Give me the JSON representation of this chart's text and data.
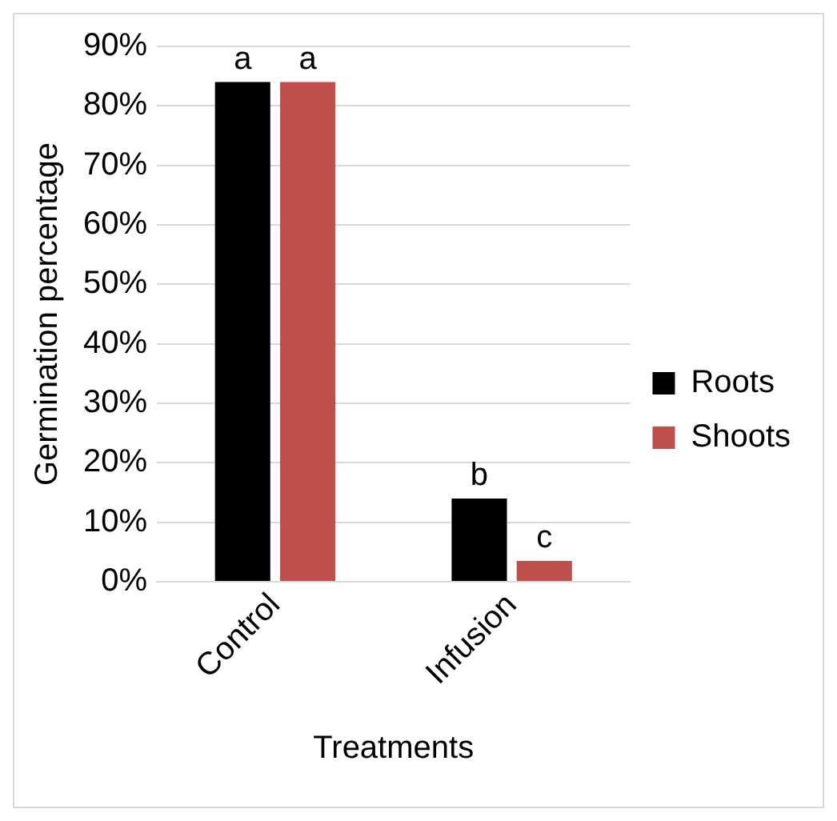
{
  "chart_data": {
    "type": "bar",
    "xlabel": "Treatments",
    "ylabel": "Germination percentage",
    "categories": [
      "Control",
      "Infusion"
    ],
    "series": [
      {
        "name": "Roots",
        "color": "#000000",
        "values": [
          84,
          14
        ]
      },
      {
        "name": "Shoots",
        "color": "#c0504d",
        "values": [
          84,
          3.5
        ]
      }
    ],
    "ylim": [
      0,
      90
    ],
    "yticks": [
      {
        "value": 0,
        "label": "0%"
      },
      {
        "value": 10,
        "label": "10%"
      },
      {
        "value": 20,
        "label": "20%"
      },
      {
        "value": 30,
        "label": "30%"
      },
      {
        "value": 40,
        "label": "40%"
      },
      {
        "value": 50,
        "label": "50%"
      },
      {
        "value": 60,
        "label": "60%"
      },
      {
        "value": 70,
        "label": "70%"
      },
      {
        "value": 80,
        "label": "80%"
      },
      {
        "value": 90,
        "label": "90%"
      }
    ],
    "grid": "y",
    "legend": "right",
    "annotations": [
      {
        "text": "a",
        "x": "Control",
        "y": 84
      },
      {
        "text": "a",
        "x": "Control",
        "y": 84
      },
      {
        "text": "b",
        "x": "Infusion",
        "y": 14
      },
      {
        "text": "c",
        "x": "Infusion",
        "y": 3.5
      }
    ]
  }
}
